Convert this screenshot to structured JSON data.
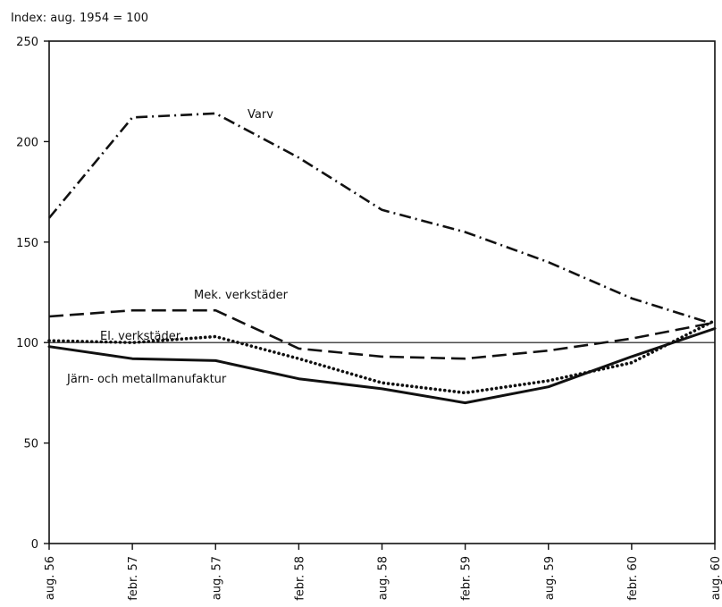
{
  "chart_data": {
    "type": "line",
    "ylabel": "Index: aug. 1954 = 100",
    "categories": [
      "aug. 56",
      "febr. 57",
      "aug. 57",
      "febr. 58",
      "aug. 58",
      "febr. 59",
      "aug. 59",
      "febr. 60",
      "aug. 60"
    ],
    "ylim": [
      0,
      250
    ],
    "yticks": [
      "0",
      "50",
      "100",
      "150",
      "200",
      "250"
    ],
    "reference_line": 100,
    "series": [
      {
        "name": "Varv",
        "style": "dashdot",
        "color": "#111111",
        "values": [
          162,
          212,
          214,
          192,
          166,
          155,
          140,
          122,
          109
        ]
      },
      {
        "name": "Mek. verkstäder",
        "style": "dashed",
        "color": "#111111",
        "values": [
          113,
          116,
          116,
          97,
          93,
          92,
          96,
          102,
          110
        ]
      },
      {
        "name": "El. verkstäder",
        "style": "dotted",
        "color": "#111111",
        "values": [
          101,
          100,
          103,
          92,
          80,
          75,
          81,
          90,
          111
        ]
      },
      {
        "name": "Järn- och metallmanufaktur",
        "style": "solid",
        "color": "#111111",
        "values": [
          98,
          92,
          91,
          82,
          77,
          70,
          78,
          93,
          107
        ]
      }
    ]
  }
}
